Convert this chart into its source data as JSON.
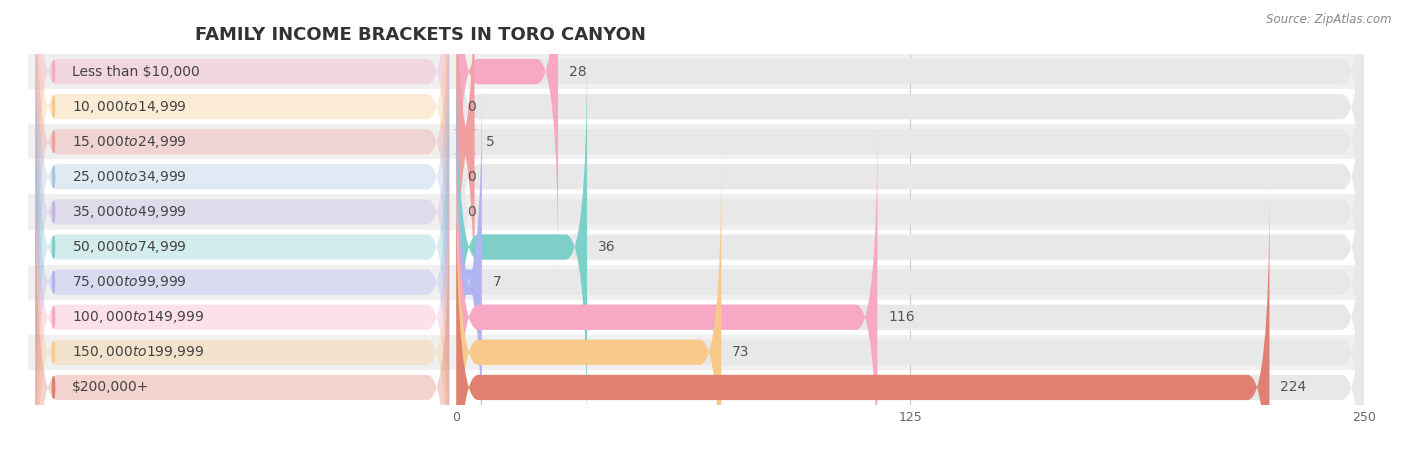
{
  "title": "FAMILY INCOME BRACKETS IN TORO CANYON",
  "source": "Source: ZipAtlas.com",
  "categories": [
    "Less than $10,000",
    "$10,000 to $14,999",
    "$15,000 to $24,999",
    "$25,000 to $34,999",
    "$35,000 to $49,999",
    "$50,000 to $74,999",
    "$75,000 to $99,999",
    "$100,000 to $149,999",
    "$150,000 to $199,999",
    "$200,000+"
  ],
  "values": [
    28,
    0,
    5,
    0,
    0,
    36,
    7,
    116,
    73,
    224
  ],
  "bar_colors": [
    "#f7a8c4",
    "#f9c98a",
    "#f0a0a0",
    "#a8c4e0",
    "#c4b4e4",
    "#7ececa",
    "#b0b4f0",
    "#f7a8c4",
    "#f9c98a",
    "#e08070"
  ],
  "label_bg_colors": [
    "#f7a8c4",
    "#f9c98a",
    "#f0a0a0",
    "#a8c4e0",
    "#c4b4e4",
    "#7ececa",
    "#b0b4f0",
    "#f7a8c4",
    "#f9c98a",
    "#e08070"
  ],
  "xlim": [
    0,
    250
  ],
  "xticks": [
    0,
    125,
    250
  ],
  "background_color": "#ffffff",
  "row_bg_colors": [
    "#f0f0f0",
    "#ffffff"
  ],
  "bar_bg_color": "#e8e8e8",
  "title_fontsize": 13,
  "label_fontsize": 10,
  "value_fontsize": 10
}
